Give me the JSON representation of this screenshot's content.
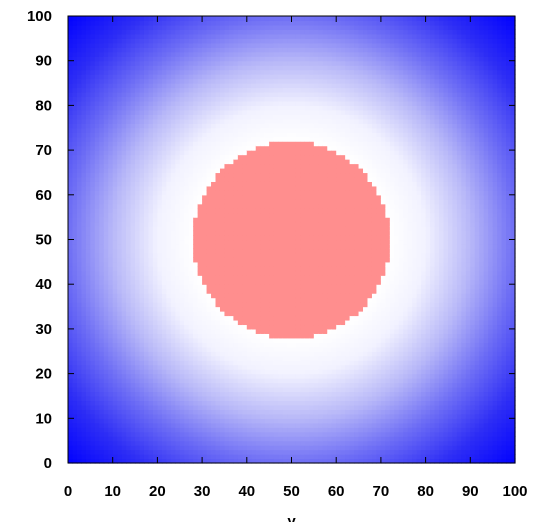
{
  "chart_data": {
    "type": "heatmap",
    "title": "",
    "xlabel": "y",
    "ylabel": "",
    "xlim": [
      0,
      100
    ],
    "ylim": [
      0,
      100
    ],
    "x_ticks": [
      "0",
      "10",
      "20",
      "30",
      "40",
      "50",
      "60",
      "70",
      "80",
      "90",
      "100"
    ],
    "y_ticks": [
      "0",
      "10",
      "20",
      "30",
      "40",
      "50",
      "60",
      "70",
      "80",
      "90",
      "100"
    ],
    "grid": false,
    "legend": "none",
    "grid_resolution": 100,
    "field": {
      "description_of_values": "radial field centered at (50,50): red disk of radius 22 inside, fading from white near radius 22 to saturated blue at the corners",
      "center": [
        50,
        50
      ],
      "inner_region": {
        "radius": 22,
        "color": "#ff8e8e"
      },
      "outer_gradient": [
        {
          "distance": 22,
          "color": "#ffffff"
        },
        {
          "distance": 30,
          "color": "#f2f2ff"
        },
        {
          "distance": 40,
          "color": "#b8b8f8"
        },
        {
          "distance": 50,
          "color": "#6e6ef5"
        },
        {
          "distance": 60,
          "color": "#2e2ef5"
        },
        {
          "distance": 71,
          "color": "#0000ff"
        }
      ]
    }
  }
}
